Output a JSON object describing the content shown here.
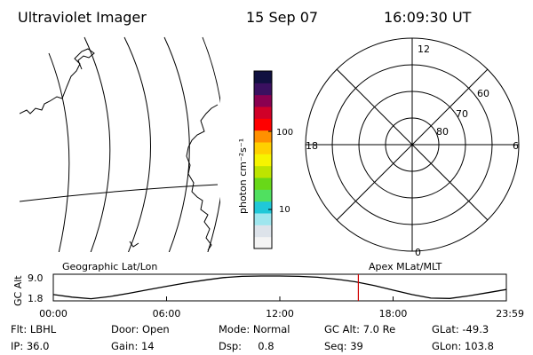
{
  "header": {
    "title": "Ultraviolet Imager",
    "date": "15 Sep 07",
    "time": "16:09:30 UT"
  },
  "colorbar": {
    "label": "photon cm⁻²s⁻¹",
    "tick_labels": [
      "100",
      "10"
    ],
    "colors": [
      "#f4f4f4",
      "#dde3ea",
      "#9fe6ee",
      "#20c8d8",
      "#50e060",
      "#68d818",
      "#bde400",
      "#f6f400",
      "#ffd000",
      "#ff9000",
      "#ff0000",
      "#d00028",
      "#8a0050",
      "#3a1060",
      "#101040"
    ]
  },
  "map_panel": {
    "name": "Geographic Lat/Lon"
  },
  "polar_panel": {
    "name": "Apex MLat/MLT",
    "mlt_labels": {
      "top": "12",
      "right": "6",
      "bottom": "0",
      "left": "18"
    },
    "lat_labels": [
      "60",
      "70",
      "80"
    ]
  },
  "chart_data": {
    "type": "line",
    "ylabel": "GC Alt",
    "y_tick_labels": [
      "9.0",
      "1.8"
    ],
    "ylim": [
      1.8,
      9.0
    ],
    "x_tick_labels": [
      "00:00",
      "06:00",
      "12:00",
      "18:00",
      "23:59"
    ],
    "xlim_hours": [
      0,
      24
    ],
    "current_time_hours": 16.16,
    "series": [
      {
        "x": [
          0,
          1,
          2,
          3,
          4,
          5,
          6,
          7,
          8,
          9,
          10,
          11,
          12,
          13,
          14,
          15,
          16,
          17,
          18,
          19,
          20,
          21,
          22,
          23,
          24
        ],
        "y": [
          3.2,
          2.4,
          1.9,
          2.6,
          3.6,
          4.7,
          5.8,
          6.8,
          7.7,
          8.5,
          8.9,
          9.0,
          9.0,
          8.9,
          8.6,
          8.0,
          7.2,
          6.0,
          4.6,
          3.2,
          2.1,
          2.0,
          2.8,
          3.8,
          4.8
        ]
      }
    ]
  },
  "footer": {
    "filter": "Flt: LBHL",
    "ip": "IP: 36.0",
    "door": "Door: Open",
    "gain": "Gain: 14",
    "mode": "Mode: Normal",
    "dsp": "Dsp:     0.8",
    "gc_alt": "GC Alt: 7.0 Re",
    "seq": "Seq: 39",
    "glat": "GLat: -49.3",
    "glon": "GLon: 103.8"
  }
}
